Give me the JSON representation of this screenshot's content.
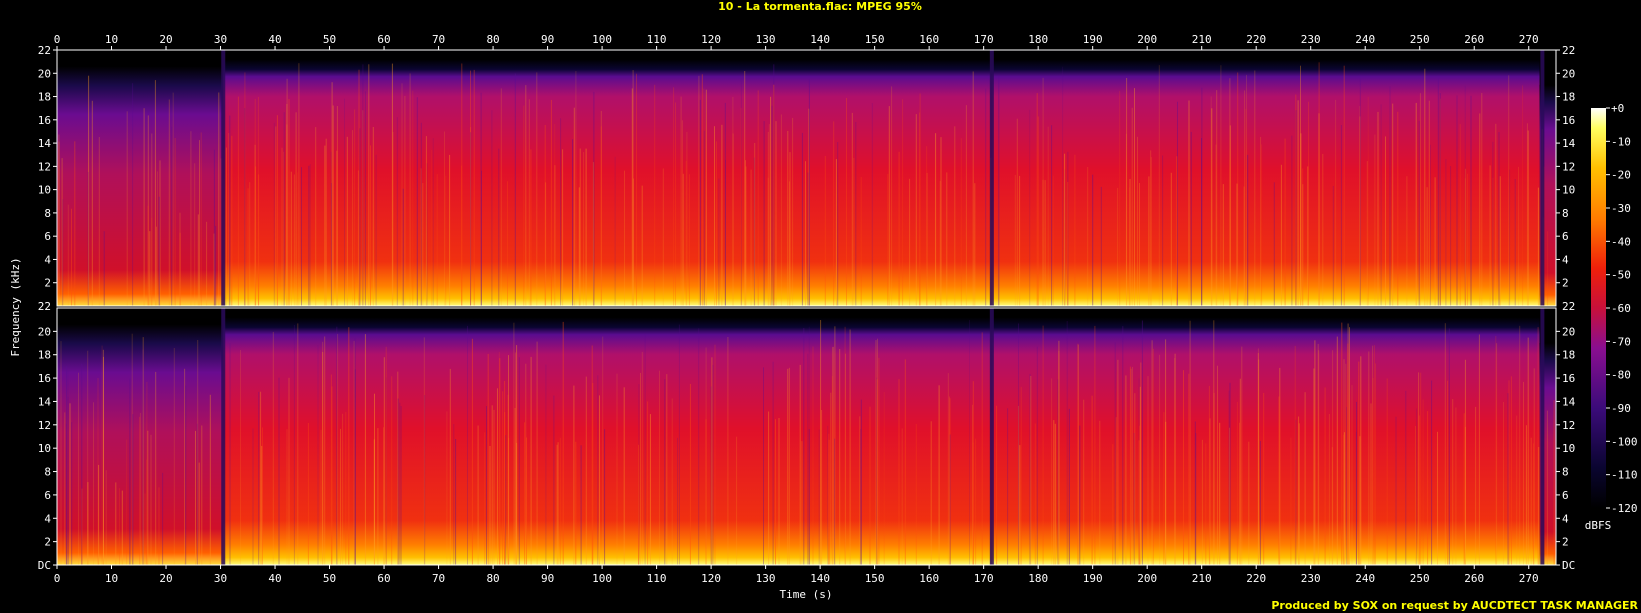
{
  "header": {
    "title": "10 - La tormenta.flac: MPEG 95%"
  },
  "footer": {
    "credit": "Produced by SOX on request by AUCDTECT TASK MANAGER"
  },
  "chart_data": {
    "type": "heatmap",
    "title": "10 - La tormenta.flac: MPEG 95%",
    "xlabel": "Time (s)",
    "ylabel": "Frequency (kHz)",
    "xlim": [
      0,
      275
    ],
    "ylim": [
      0,
      22
    ],
    "x_ticks": [
      "0",
      "10",
      "20",
      "30",
      "40",
      "50",
      "60",
      "70",
      "80",
      "90",
      "100",
      "110",
      "120",
      "130",
      "140",
      "150",
      "160",
      "170",
      "180",
      "190",
      "200",
      "210",
      "220",
      "230",
      "240",
      "250",
      "260",
      "270"
    ],
    "y_ticks": [
      "DC",
      "2",
      "4",
      "6",
      "8",
      "10",
      "12",
      "14",
      "16",
      "18",
      "20",
      "22"
    ],
    "channels": 2,
    "colorbar": {
      "label": "dBFS",
      "ticks": [
        "+0",
        "-10",
        "-20",
        "-30",
        "-40",
        "-50",
        "-60",
        "-70",
        "-80",
        "-90",
        "-100",
        "-110",
        "-120"
      ],
      "range": [
        -120,
        0
      ],
      "colors": [
        "#000000",
        "#1a0a4a",
        "#3b0b7a",
        "#6e0ea0",
        "#a3107a",
        "#d4102a",
        "#f0300a",
        "#ff7a00",
        "#ffc000",
        "#ffff60",
        "#ffffff"
      ]
    },
    "lowpass_cutoff_khz": 20.5,
    "segments": [
      {
        "start": 0,
        "end": 30.5,
        "level": "quieter, cutoff ~20.5 kHz"
      },
      {
        "start": 30.5,
        "end": 171.5,
        "level": "loud, cutoff ~21 kHz"
      },
      {
        "start": 171.5,
        "end": 272,
        "level": "loud, cutoff ~21 kHz"
      },
      {
        "start": 272,
        "end": 275,
        "level": "fade-out"
      }
    ]
  }
}
